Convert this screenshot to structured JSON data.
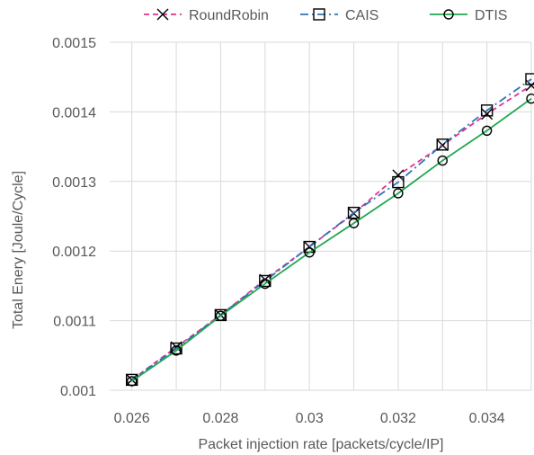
{
  "chart_data": {
    "type": "line",
    "title": "",
    "xlabel": "Packet injection rate [packets/cycle/IP]",
    "ylabel": "Total Enery [Joule/Cycle]",
    "x": [
      0.026,
      0.027,
      0.028,
      0.029,
      0.03,
      0.031,
      0.032,
      0.033,
      0.034,
      0.035
    ],
    "xlim": [
      0.0255,
      0.035
    ],
    "ylim": [
      0.001,
      0.0015
    ],
    "x_ticks": [
      0.026,
      0.028,
      0.03,
      0.032,
      0.034
    ],
    "x_tick_labels": [
      "0.026",
      "0.028",
      "0.03",
      "0.032",
      "0.034"
    ],
    "y_ticks": [
      0.001,
      0.0011,
      0.0012,
      0.0013,
      0.0014,
      0.0015
    ],
    "y_tick_labels": [
      "0.001",
      "0.0011",
      "0.0012",
      "0.0013",
      "0.0014",
      "0.0015"
    ],
    "grid": "vertical-and-horizontal",
    "legend_position": "top",
    "series": [
      {
        "name": "RoundRobin",
        "color": "#E0338F",
        "marker": "x",
        "line_style": "dashed",
        "values": [
          0.001015,
          0.001062,
          0.001108,
          0.001159,
          0.001206,
          0.001254,
          0.001309,
          0.001352,
          0.001397,
          0.001438
        ]
      },
      {
        "name": "CAIS",
        "color": "#2E75B6",
        "marker": "square",
        "line_style": "dash-dot",
        "values": [
          0.001015,
          0.00106,
          0.001108,
          0.001157,
          0.001206,
          0.001255,
          0.001299,
          0.001353,
          0.001402,
          0.001447
        ]
      },
      {
        "name": "DTIS",
        "color": "#1FA851",
        "marker": "circle",
        "line_style": "solid",
        "values": [
          0.001013,
          0.001057,
          0.001107,
          0.001153,
          0.001198,
          0.00124,
          0.001283,
          0.00133,
          0.001373,
          0.001419
        ]
      }
    ]
  }
}
